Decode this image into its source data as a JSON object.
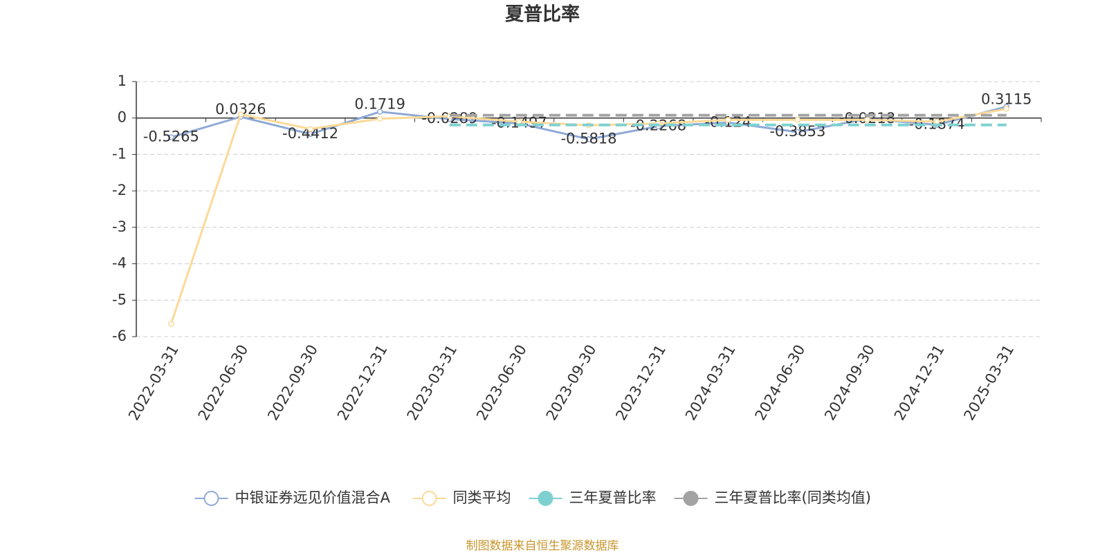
{
  "chart_data": {
    "type": "line",
    "title": "夏普比率",
    "categories": [
      "2022-03-31",
      "2022-06-30",
      "2022-09-30",
      "2022-12-31",
      "2023-03-31",
      "2023-06-30",
      "2023-09-30",
      "2023-12-31",
      "2024-03-31",
      "2024-06-30",
      "2024-09-30",
      "2024-12-31",
      "2025-03-31"
    ],
    "series": [
      {
        "name": "中银证券远见价值混合A",
        "color": "#8fa9d6",
        "values": [
          -0.5265,
          0.0326,
          -0.4412,
          0.1719,
          -0.0289,
          -0.1497,
          -0.5818,
          -0.2268,
          -0.124,
          -0.3853,
          -0.0218,
          -0.1874,
          0.3115
        ],
        "labels": true
      },
      {
        "name": "同类平均",
        "color": "#fcd996",
        "values": [
          -5.65,
          0.1,
          -0.3,
          -0.02,
          0.05,
          -0.1,
          -0.2,
          -0.15,
          -0.05,
          -0.05,
          -0.05,
          -0.1,
          0.25
        ]
      },
      {
        "name": "三年夏普比率",
        "color": "#7fd1d1",
        "dashed": true,
        "values": [
          null,
          null,
          null,
          null,
          -0.19,
          -0.19,
          -0.19,
          -0.19,
          -0.19,
          -0.19,
          -0.19,
          -0.19,
          -0.19
        ]
      },
      {
        "name": "三年夏普比率(同类均值)",
        "color": "#a3a3a3",
        "dashed": true,
        "values": [
          null,
          null,
          null,
          null,
          0.075,
          0.075,
          0.075,
          0.075,
          0.075,
          0.075,
          0.075,
          0.075,
          0.075
        ]
      }
    ],
    "ylim": [
      -6,
      1
    ],
    "yticks": [
      -6,
      -5,
      -4,
      -3,
      -2,
      -1,
      0,
      1
    ],
    "grid": true,
    "legend": "bottom",
    "source": "制图数据来自恒生聚源数据库"
  }
}
